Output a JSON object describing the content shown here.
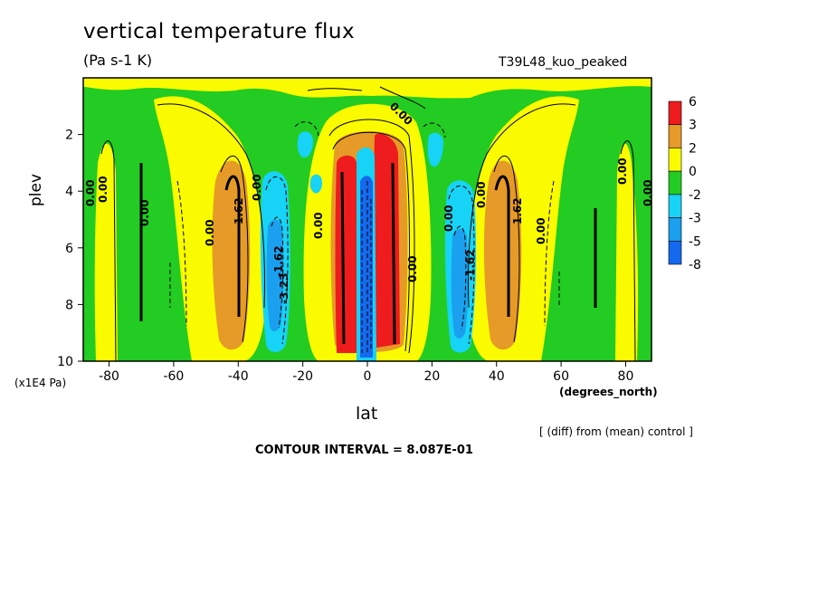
{
  "header": {
    "title": "vertical temperature flux",
    "units": "(Pa s-1 K)",
    "run": "T39L48_kuo_peaked"
  },
  "axes": {
    "ylabel": "plev",
    "yunits": "(x1E4 Pa)",
    "xlabel": "lat",
    "xunits": "(degrees_north)"
  },
  "footer": {
    "note": "[ (diff) from (mean) control ]",
    "interval": "CONTOUR INTERVAL = 8.087E-01"
  },
  "colors": {
    "red": "#ee1c1c",
    "orange": "#e69a27",
    "yellow": "#fbfb00",
    "green": "#22cc22",
    "cyan": "#17d3f5",
    "blue_mid": "#1aa0ee",
    "blue_dark": "#1569ee"
  },
  "chart_data": {
    "type": "heatmap",
    "title": "vertical temperature flux",
    "xlabel": "lat",
    "ylabel": "plev",
    "x_units": "degrees_north",
    "y_units": "x1E4 Pa",
    "xlim": [
      -88,
      88
    ],
    "ylim": [
      0,
      10
    ],
    "y_reversed": true,
    "x_ticks": [
      -80,
      -60,
      -40,
      -20,
      0,
      20,
      40,
      60,
      80
    ],
    "y_ticks": [
      2,
      4,
      6,
      8,
      10
    ],
    "contour_interval": 0.8087,
    "colorbar": {
      "labels": [
        "6",
        "3",
        "2",
        "0",
        "-2",
        "-3",
        "-5",
        "-8"
      ],
      "bins": [
        {
          "from": 3,
          "to": 6,
          "color": "#ee1c1c"
        },
        {
          "from": 2,
          "to": 3,
          "color": "#e69a27"
        },
        {
          "from": 0,
          "to": 2,
          "color": "#fbfb00"
        },
        {
          "from": -2,
          "to": 0,
          "color": "#22cc22"
        },
        {
          "from": -3,
          "to": -2,
          "color": "#17d3f5"
        },
        {
          "from": -5,
          "to": -3,
          "color": "#1aa0ee"
        },
        {
          "from": -8,
          "to": -5,
          "color": "#1569ee"
        }
      ]
    },
    "contour_labels": [
      "0.00",
      "1.62",
      "-1.62",
      "-3.23"
    ],
    "features": [
      {
        "lat": -80,
        "plev": [
          3,
          10
        ],
        "value": 0.5
      },
      {
        "lat": -70,
        "plev": [
          3,
          10
        ],
        "value": -0.8
      },
      {
        "lat": -42,
        "plev": [
          3,
          10
        ],
        "value": 2.8
      },
      {
        "lat": -30,
        "plev": [
          3,
          10
        ],
        "value": -3.3
      },
      {
        "lat": -26,
        "plev": [
          2,
          5
        ],
        "value": -2.5
      },
      {
        "lat": -15,
        "plev": [
          1,
          3
        ],
        "value": 0.5
      },
      {
        "lat": -7,
        "plev": [
          2,
          10
        ],
        "value": 5.0
      },
      {
        "lat": -2,
        "plev": [
          2.5,
          10
        ],
        "value": -6.0
      },
      {
        "lat": 6,
        "plev": [
          2,
          10
        ],
        "value": 5.0
      },
      {
        "lat": 22,
        "plev": [
          2,
          5
        ],
        "value": -2.5
      },
      {
        "lat": 29,
        "plev": [
          3,
          10
        ],
        "value": -3.3
      },
      {
        "lat": 44,
        "plev": [
          3,
          10
        ],
        "value": 2.8
      },
      {
        "lat": 70,
        "plev": [
          3,
          10
        ],
        "value": -0.8
      },
      {
        "lat": 80,
        "plev": [
          3,
          10
        ],
        "value": 0.5
      }
    ]
  }
}
